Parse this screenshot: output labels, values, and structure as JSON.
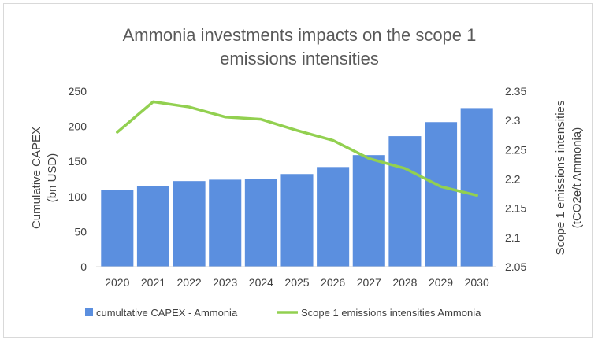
{
  "chart_data": {
    "type": "bar+line",
    "title_lines": [
      "Ammonia investments impacts on the scope 1",
      "emissions intensities"
    ],
    "categories": [
      "2020",
      "2021",
      "2022",
      "2023",
      "2024",
      "2025",
      "2026",
      "2027",
      "2028",
      "2029",
      "2030"
    ],
    "series": [
      {
        "name": "cumultative CAPEX - Ammonia",
        "type": "bar",
        "axis": "left",
        "color": "#5b8fdf",
        "values": [
          109,
          115,
          122,
          124,
          125,
          132,
          142,
          159,
          186,
          206,
          226
        ]
      },
      {
        "name": "Scope 1 emissions intensities Ammonia",
        "type": "line",
        "axis": "right",
        "color": "#92d050",
        "values": [
          2.28,
          2.332,
          2.323,
          2.306,
          2.302,
          2.283,
          2.266,
          2.235,
          2.218,
          2.187,
          2.172
        ]
      }
    ],
    "y_left": {
      "label_lines": [
        "Cumulative CAPEX",
        "(bn USD)"
      ],
      "ylim": [
        0,
        250
      ],
      "ticks": [
        0,
        50,
        100,
        150,
        200,
        250
      ]
    },
    "y_right": {
      "label_lines": [
        "Scope 1 emissions intensities",
        "(tCO2e/t Ammonia)"
      ],
      "ylim": [
        2.05,
        2.35
      ],
      "ticks": [
        "2.05",
        "2.1",
        "2.15",
        "2.2",
        "2.25",
        "2.3",
        "2.35"
      ]
    },
    "grid": false,
    "legend_position": "bottom"
  }
}
